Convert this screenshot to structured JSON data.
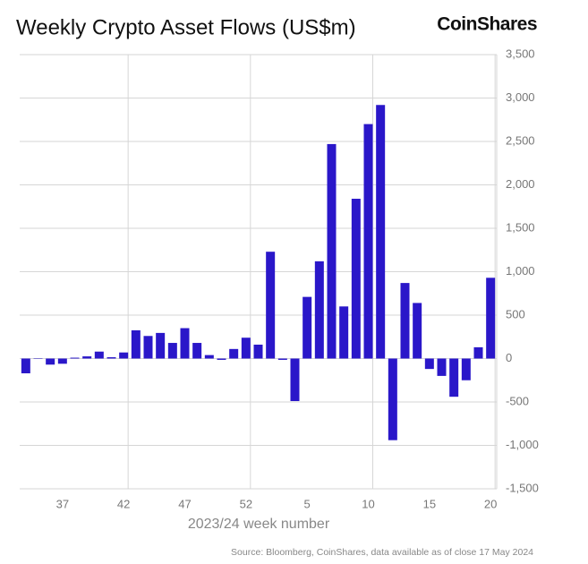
{
  "chart_data": {
    "type": "bar",
    "title": "Weekly Crypto Asset Flows (US$m)",
    "brand": "CoinShares",
    "x_label": "2023/24 week number",
    "source": "Source: Bloomberg, CoinShares, data available as of close 17 May 2024",
    "categories": [
      null,
      null,
      null,
      "37",
      null,
      null,
      null,
      null,
      "42",
      null,
      null,
      null,
      null,
      "47",
      null,
      null,
      null,
      null,
      "52",
      null,
      null,
      null,
      null,
      "5",
      null,
      null,
      null,
      null,
      "10",
      null,
      null,
      null,
      null,
      "15",
      null,
      null,
      null,
      null,
      "20"
    ],
    "values": [
      -170,
      5,
      -70,
      -60,
      10,
      25,
      80,
      15,
      70,
      325,
      260,
      295,
      180,
      350,
      180,
      40,
      -15,
      110,
      240,
      160,
      1230,
      -15,
      -490,
      710,
      1120,
      2470,
      600,
      1840,
      2700,
      2920,
      -940,
      870,
      640,
      -120,
      -200,
      -440,
      -250,
      130,
      930
    ],
    "color": "#2a17c9",
    "ylim": [
      -1500,
      3500
    ],
    "yticks": [
      {
        "value": -1500,
        "label": "-1,500"
      },
      {
        "value": -1000,
        "label": "-1,000"
      },
      -500,
      0,
      500,
      {
        "value": 1000,
        "label": "1,000"
      },
      {
        "value": 1500,
        "label": "1,500"
      },
      {
        "value": 2000,
        "label": "2,000"
      },
      {
        "value": 2500,
        "label": "2,500"
      },
      {
        "value": 3000,
        "label": "3,000"
      },
      {
        "value": 3500,
        "label": "3,500"
      }
    ],
    "grid": true
  }
}
